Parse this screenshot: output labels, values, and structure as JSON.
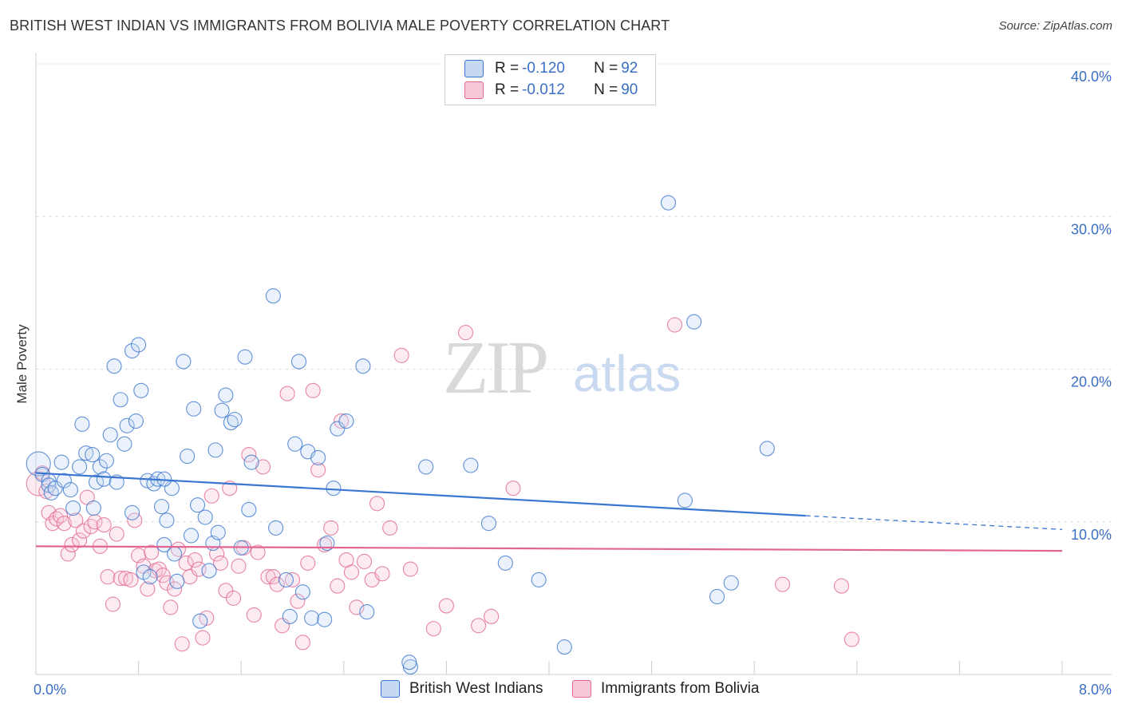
{
  "title": "BRITISH WEST INDIAN VS IMMIGRANTS FROM BOLIVIA MALE POVERTY CORRELATION CHART",
  "source": "Source: ZipAtlas.com",
  "watermark": {
    "zip": "ZIP",
    "atlas": "atlas"
  },
  "colors": {
    "blue": "#3a76d0",
    "blue_fill": "#c6d9f3",
    "pink": "#e2668f",
    "pink_fill": "#f7c9d8",
    "axis_text": "#3a6fc4"
  },
  "legend": {
    "rows": [
      {
        "r_label": "R = ",
        "r_value": "-0.120",
        "n_label": "N = ",
        "n_value": "92"
      },
      {
        "r_label": "R = ",
        "r_value": "-0.012",
        "n_label": "N = ",
        "n_value": "90"
      }
    ]
  },
  "chart_data": {
    "type": "scatter",
    "title": "BRITISH WEST INDIAN VS IMMIGRANTS FROM BOLIVIA MALE POVERTY CORRELATION CHART",
    "xlabel": "",
    "ylabel": "Male Poverty",
    "xlim": [
      0,
      8
    ],
    "ylim": [
      0,
      40
    ],
    "x_tick_labels": [
      "0.0%",
      "8.0%"
    ],
    "y_ticks": [
      10,
      20,
      30,
      40
    ],
    "y_tick_labels": [
      "10.0%",
      "20.0%",
      "30.0%",
      "40.0%"
    ],
    "grid": true,
    "series": [
      {
        "name": "British West Indians",
        "r": -0.12,
        "n": 92,
        "trend": {
          "x_solid": [
            0,
            6.0
          ],
          "y_solid": [
            13.2,
            10.4
          ],
          "x_dashed": [
            6.0,
            8.0
          ],
          "y_dashed": [
            10.4,
            9.5
          ]
        },
        "points": [
          [
            0.02,
            13.8
          ],
          [
            0.05,
            13.1
          ],
          [
            0.1,
            12.7
          ],
          [
            0.1,
            12.4
          ],
          [
            0.12,
            11.9
          ],
          [
            0.15,
            12.2
          ],
          [
            0.2,
            13.9
          ],
          [
            0.22,
            12.7
          ],
          [
            0.27,
            12.1
          ],
          [
            0.29,
            10.9
          ],
          [
            0.34,
            13.6
          ],
          [
            0.36,
            16.4
          ],
          [
            0.39,
            14.5
          ],
          [
            0.44,
            14.4
          ],
          [
            0.45,
            10.9
          ],
          [
            0.47,
            12.6
          ],
          [
            0.5,
            13.6
          ],
          [
            0.53,
            12.8
          ],
          [
            0.55,
            14.0
          ],
          [
            0.58,
            15.7
          ],
          [
            0.61,
            20.2
          ],
          [
            0.63,
            12.6
          ],
          [
            0.66,
            18.0
          ],
          [
            0.69,
            15.1
          ],
          [
            0.71,
            16.3
          ],
          [
            0.75,
            21.2
          ],
          [
            0.78,
            16.6
          ],
          [
            0.8,
            21.6
          ],
          [
            0.82,
            18.6
          ],
          [
            0.84,
            6.7
          ],
          [
            0.87,
            12.7
          ],
          [
            0.89,
            6.4
          ],
          [
            0.92,
            12.5
          ],
          [
            0.95,
            12.8
          ],
          [
            0.98,
            11.0
          ],
          [
            1.0,
            8.5
          ],
          [
            1.02,
            10.1
          ],
          [
            1.06,
            12.2
          ],
          [
            1.08,
            7.9
          ],
          [
            1.1,
            6.1
          ],
          [
            1.15,
            20.5
          ],
          [
            1.18,
            14.3
          ],
          [
            1.21,
            9.1
          ],
          [
            1.23,
            17.4
          ],
          [
            1.26,
            11.1
          ],
          [
            1.28,
            3.5
          ],
          [
            1.32,
            10.3
          ],
          [
            1.35,
            6.8
          ],
          [
            1.38,
            8.6
          ],
          [
            1.4,
            14.7
          ],
          [
            1.42,
            9.3
          ],
          [
            1.45,
            17.3
          ],
          [
            1.48,
            18.3
          ],
          [
            1.52,
            16.5
          ],
          [
            1.55,
            16.7
          ],
          [
            1.6,
            8.3
          ],
          [
            1.63,
            20.8
          ],
          [
            1.66,
            10.8
          ],
          [
            1.68,
            13.9
          ],
          [
            1.85,
            24.8
          ],
          [
            1.87,
            9.6
          ],
          [
            1.95,
            6.2
          ],
          [
            1.98,
            3.8
          ],
          [
            2.02,
            15.1
          ],
          [
            2.05,
            20.5
          ],
          [
            2.08,
            5.4
          ],
          [
            2.12,
            14.6
          ],
          [
            2.15,
            3.7
          ],
          [
            2.2,
            14.2
          ],
          [
            2.25,
            3.6
          ],
          [
            2.27,
            8.6
          ],
          [
            2.32,
            12.2
          ],
          [
            2.35,
            16.1
          ],
          [
            2.42,
            16.6
          ],
          [
            2.55,
            20.2
          ],
          [
            2.58,
            4.1
          ],
          [
            2.92,
            0.5
          ],
          [
            3.04,
            13.6
          ],
          [
            3.39,
            13.7
          ],
          [
            3.53,
            9.9
          ],
          [
            3.66,
            7.3
          ],
          [
            3.92,
            6.2
          ],
          [
            4.12,
            1.8
          ],
          [
            4.93,
            30.9
          ],
          [
            5.06,
            11.4
          ],
          [
            5.13,
            23.1
          ],
          [
            5.31,
            5.1
          ],
          [
            5.42,
            6.0
          ],
          [
            5.7,
            14.8
          ],
          [
            2.91,
            0.8
          ],
          [
            1.0,
            12.8
          ],
          [
            0.75,
            10.6
          ]
        ]
      },
      {
        "name": "Immigrants from Bolivia",
        "r": -0.012,
        "n": 90,
        "trend": {
          "x_solid": [
            0,
            8.0
          ],
          "y_solid": [
            8.4,
            8.1
          ]
        },
        "points": [
          [
            0.02,
            12.5
          ],
          [
            0.05,
            13.2
          ],
          [
            0.08,
            12.0
          ],
          [
            0.1,
            10.6
          ],
          [
            0.13,
            9.9
          ],
          [
            0.16,
            10.2
          ],
          [
            0.19,
            10.4
          ],
          [
            0.22,
            9.9
          ],
          [
            0.25,
            7.9
          ],
          [
            0.28,
            8.5
          ],
          [
            0.31,
            10.1
          ],
          [
            0.34,
            8.8
          ],
          [
            0.37,
            9.4
          ],
          [
            0.4,
            11.6
          ],
          [
            0.43,
            9.7
          ],
          [
            0.46,
            10.0
          ],
          [
            0.5,
            8.4
          ],
          [
            0.53,
            9.8
          ],
          [
            0.56,
            6.4
          ],
          [
            0.6,
            4.6
          ],
          [
            0.63,
            9.2
          ],
          [
            0.66,
            6.3
          ],
          [
            0.7,
            6.3
          ],
          [
            0.74,
            6.2
          ],
          [
            0.77,
            10.1
          ],
          [
            0.8,
            7.8
          ],
          [
            0.84,
            7.1
          ],
          [
            0.87,
            5.6
          ],
          [
            0.9,
            8.0
          ],
          [
            0.93,
            6.8
          ],
          [
            0.96,
            6.9
          ],
          [
            0.99,
            6.5
          ],
          [
            1.02,
            6.0
          ],
          [
            1.05,
            4.4
          ],
          [
            1.08,
            5.6
          ],
          [
            1.11,
            8.2
          ],
          [
            1.14,
            2.0
          ],
          [
            1.17,
            7.3
          ],
          [
            1.2,
            6.4
          ],
          [
            1.24,
            7.5
          ],
          [
            1.27,
            6.9
          ],
          [
            1.3,
            2.4
          ],
          [
            1.33,
            3.7
          ],
          [
            1.37,
            11.7
          ],
          [
            1.41,
            7.9
          ],
          [
            1.44,
            7.3
          ],
          [
            1.48,
            5.5
          ],
          [
            1.51,
            12.2
          ],
          [
            1.54,
            5.0
          ],
          [
            1.58,
            7.1
          ],
          [
            1.62,
            8.3
          ],
          [
            1.66,
            14.4
          ],
          [
            1.7,
            3.9
          ],
          [
            1.73,
            8.0
          ],
          [
            1.77,
            13.6
          ],
          [
            1.81,
            6.4
          ],
          [
            1.85,
            6.4
          ],
          [
            1.88,
            5.9
          ],
          [
            1.92,
            3.2
          ],
          [
            1.96,
            18.4
          ],
          [
            2.0,
            6.2
          ],
          [
            2.04,
            4.8
          ],
          [
            2.08,
            2.1
          ],
          [
            2.12,
            7.3
          ],
          [
            2.16,
            18.6
          ],
          [
            2.2,
            13.4
          ],
          [
            2.25,
            8.5
          ],
          [
            2.3,
            9.6
          ],
          [
            2.35,
            5.8
          ],
          [
            2.38,
            16.6
          ],
          [
            2.42,
            7.5
          ],
          [
            2.46,
            6.7
          ],
          [
            2.5,
            4.4
          ],
          [
            2.56,
            7.4
          ],
          [
            2.62,
            6.2
          ],
          [
            2.66,
            11.2
          ],
          [
            2.7,
            6.6
          ],
          [
            2.76,
            9.6
          ],
          [
            2.85,
            20.9
          ],
          [
            2.92,
            6.9
          ],
          [
            3.1,
            3.0
          ],
          [
            3.2,
            4.5
          ],
          [
            3.35,
            22.4
          ],
          [
            3.45,
            3.2
          ],
          [
            3.55,
            3.8
          ],
          [
            3.72,
            12.2
          ],
          [
            4.98,
            22.9
          ],
          [
            5.82,
            5.9
          ],
          [
            6.28,
            5.8
          ],
          [
            6.36,
            2.3
          ]
        ]
      }
    ]
  }
}
